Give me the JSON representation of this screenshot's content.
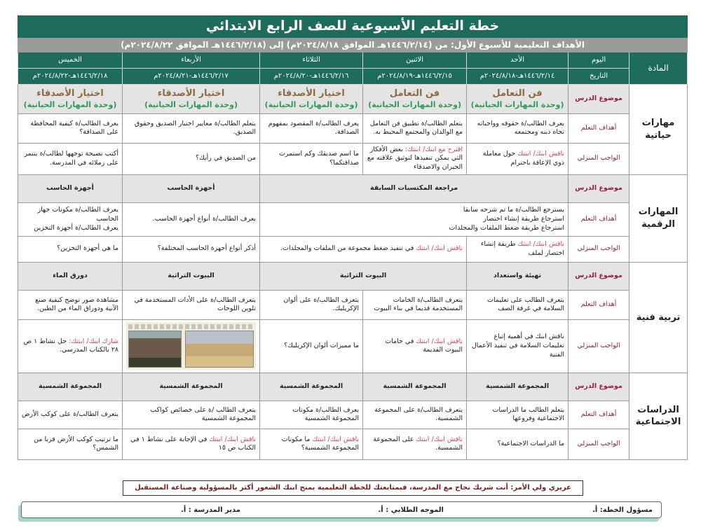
{
  "header": {
    "title": "خطة التعليم الأسبوعية للصف الرابع الابتدائي",
    "subtitle": "الأهداف التعليمية للأسبوع الأول: من (١٤٤٦/٢/١٤هـ الموافق ٢٠٢٤/٨/١٨م) إلى (١٤٤٦/٢/١٨هـ الموافق ٢٠٢٤/٨/٢٢م)",
    "subject_label": "المادة",
    "day_label": "اليوم",
    "date_label": "التاريخ",
    "days": [
      "الأحد",
      "الاثنين",
      "الثلاثاء",
      "الأربعاء",
      "الخميس"
    ],
    "dates": [
      "١٤٤٦/٢/١٤هـ-٢٠٢٤/٨/١٨م",
      "١٤٤٦/٢/١٥هـ-٢٠٢٤/٨/١٩م",
      "١٤٤٦/٢/١٦هـ-٢٠٢٤/٨/٢٠م",
      "١٤٤٦/٢/١٧هـ-٢٠٢٤/٨/٢١م",
      "١٤٤٦/٢/١٨هـ-٢٠٢٤/٨/٢٢م"
    ]
  },
  "row_labels": {
    "topic": "موضوع الدرس",
    "objectives": "أهداف التعلم",
    "homework": "الواجب المنزلي"
  },
  "sections": [
    {
      "subject": "مهارات حياتية",
      "topic": [
        {
          "text": "فن التعامل",
          "unit": "(وحدة المهارات الحياتية)"
        },
        {
          "text": "فن التعامل",
          "unit": "(وحدة المهارات الحياتية)"
        },
        {
          "text": "اختيار الأصدقاء",
          "unit": "(وحدة المهارات الحياتية)"
        },
        {
          "text": "اختيار الأصدقاء",
          "unit": "(وحدة المهارات الحياتية)"
        },
        {
          "text": "اختيار الأصدقاء",
          "unit": "(وحدة المهارات الحياتية)"
        }
      ],
      "objectives": [
        {
          "text": "يعرف الطالب/ة حقوقه وواجباته تجاه دينه ومجتمعه"
        },
        {
          "text": "يتعلم الطالب/ة تطبيق فن التعامل مع الوالدان والمجتمع المحيط به."
        },
        {
          "text": "يعرف الطالب/ة المقصود بمفهوم الصداقة."
        },
        {
          "text": "يتعلم الطالب/ة معايير اختيار الصديق وحقوق الصديق."
        },
        {
          "text": "يعرف الطالب/ة كيفية المحافظة على الصداقة؟"
        }
      ],
      "homework": [
        {
          "highlight": "ناقش ابنك/ ابنتك",
          "text": " حول معاملة ذوي الإعاقة باحترام"
        },
        {
          "highlight": "اقترح مع ابنك/ ابنتك:",
          "text": " بعض الأفكار التي يمكن تنفيذها لتوثيق علاقته مع الجيران والاصدقاء"
        },
        {
          "text": "ما اسم صديقك وكم استمرت صداقتكما؟"
        },
        {
          "text": "من الصديق في رأيك؟"
        },
        {
          "text": "أكتب نصيحة توجهها لطالب/ة يتنمر على زملائه في المدرسة."
        }
      ]
    },
    {
      "subject": "المهارات الرقمية",
      "topic": [
        {
          "text": "مراجعة المكتسبات السابقة",
          "span": 3
        },
        {
          "text": "أجهزة الحاسب"
        },
        {
          "text": "أجهزة الحاسب"
        }
      ],
      "objectives": [
        {
          "text": "يسترجع الطالب/ة ما تم شرحه سابقا\nاسترجاع طريقة إنشاء اختصار\nاسترجاع طريقة ضغط الملفات والمجلدات",
          "span": 3
        },
        {
          "text": "يعرف الطالب/ة أنواع أجهزة الحاسب."
        },
        {
          "text": "يعرف الطالب/ة مكونات جهاز الحاسب\nيعرف الطالب/ة أجهزة التخزين"
        }
      ],
      "homework": [
        {
          "highlight": "ناقش ابنك/ ابنتك",
          "text": " طريقة إنشاء اختصار لملف"
        },
        {
          "highlight": "ناقش ابنك/ ابنتك",
          "text": " في تنفيذ ضغط مجموعة من الملفات والمجلدات.",
          "span": 2
        },
        {
          "text": "أذكر أنواع أجهزة الحاسب المختلفة؟"
        },
        {
          "text": "ما هي أجهزة التخزين؟"
        }
      ]
    },
    {
      "subject": "تربية فنية",
      "topic": [
        {
          "text": "تهيئة واستعداد"
        },
        {
          "text": "البيوت التراثية",
          "span": 2
        },
        {
          "text": "البيوت التراثية"
        },
        {
          "text": "دورق الماء"
        }
      ],
      "objectives": [
        {
          "text": "يتعرف الطالب على تعليمات السلامة في غرفة الصف"
        },
        {
          "text": "يتعرف الطالب/ة الخامات المستخدمة قديما في بناء البيوت"
        },
        {
          "text": "يتعرف الطالب/ة على ألوان الإكريليك."
        },
        {
          "text": "يتعرف الطالب/ة على الأدات المستخدمة في تلوين اللوحات"
        },
        {
          "text": "مشاهدة صور توضح كيفية صنع الآنية ودوراق الماء من الطين."
        }
      ],
      "homework": [
        {
          "text": "ناقش ابنك في أهمية إتباع تعليمات السلامة في تنفيذ الأعمال الفنية"
        },
        {
          "highlight": "ناقش ابنك/ ابنتك",
          "text": " في خامات البيوت القديمة"
        },
        {
          "text": "ما مميزات ألوان الإكريليك؟"
        },
        {
          "image": "heritage-houses-picture"
        },
        {
          "highlight": "شارك ابنك/ ابنتك:",
          "text": " حل نشاط ١ ص ٢٨ بالكتاب المدرسي."
        }
      ]
    },
    {
      "subject": "الدراسات الاجتماعية",
      "topic": [
        {
          "text": "المجموعة الشمسية"
        },
        {
          "text": "المجموعة الشمسية"
        },
        {
          "text": "المجموعة الشمسية"
        },
        {
          "text": "المجموعة الشمسية"
        },
        {
          "text": "المجموعة الشمسية"
        }
      ],
      "objectives": [
        {
          "text": "يتعلم الطالب ما الدراسات الاجتماعية وفروعها"
        },
        {
          "text": "يتعرف الطالب/ة على المجموعة الشمسية."
        },
        {
          "text": "يعرف الطالب/ة مكونات المجموعة الشمسية"
        },
        {
          "text": "يتعرف الطالب /ة على خصائص كواكب المجموعة الشمسية"
        },
        {
          "text": "يتعرف الطالب/ة على كوكب الأرض"
        }
      ],
      "homework": [
        {
          "text": "ما الدراسات الاجتماعية؟"
        },
        {
          "highlight": "ناقش ابنك/ ابنتك",
          "text": " على المجموعة الشمسية."
        },
        {
          "highlight": "ناقش ابنك/ ابنتك",
          "text": " ما مكونات المجموعة الشمسية؟"
        },
        {
          "highlight": "ناقش ابنك/ ابنتك",
          "text": " في الإجابة على نشاط ١ في الكتاب ص ١٥"
        },
        {
          "text": "ما ترتيب كوكب الأرض قربا من الشمس؟"
        }
      ]
    }
  ],
  "footer": {
    "note": "عزيزي ولي الأمر: أنت شريك نجاح مع المدرسة، فبمتابعتك للخطة التعليمية يمنح ابنك الشعور أكثر بالمسؤولية وصناعة المستقبل",
    "plan_owner": "مسؤول الخطة: أ.",
    "counselor": "الموجه الطلابي : أ.",
    "principal": "مدير المدرسة : أ."
  },
  "colors": {
    "header": "#1c6b5b",
    "subtitle_bar": "#9b9b9b",
    "row_label": "#9b1b3b",
    "highlight": "#e0405a",
    "unit": "#2e9a57"
  }
}
